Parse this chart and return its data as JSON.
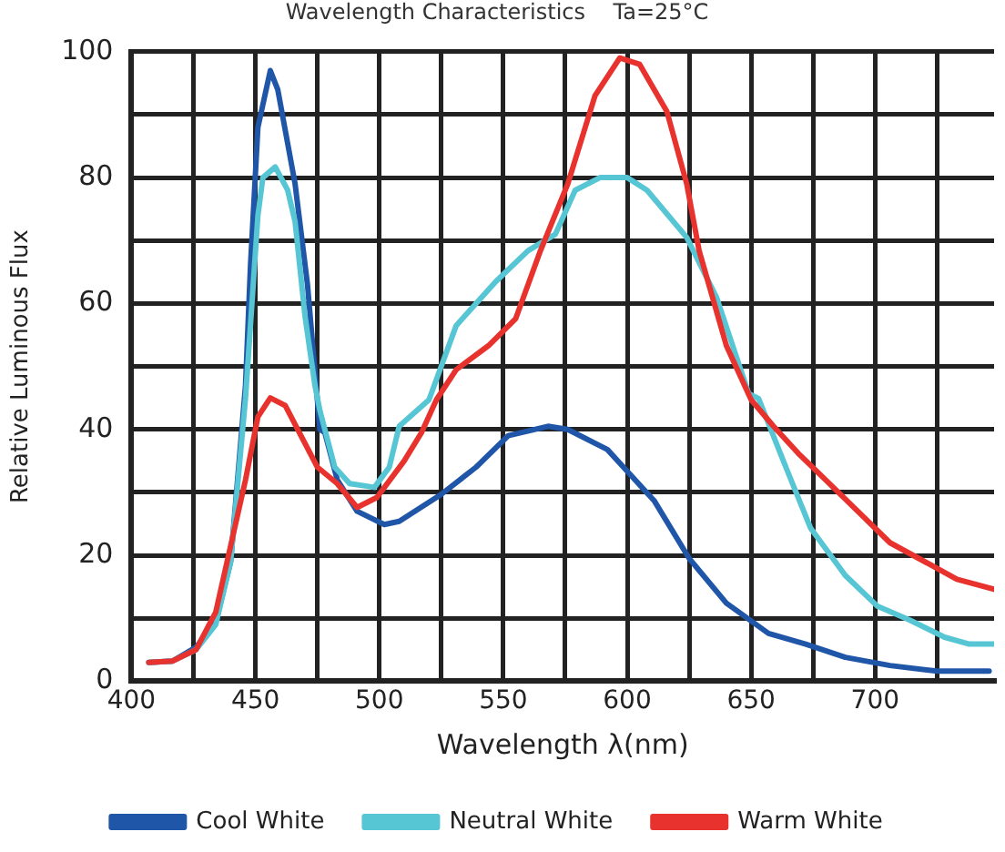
{
  "chart_data": {
    "type": "line",
    "title": "Wavelength Characteristics    Ta=25°C",
    "xlabel": "Wavelength λ(nm)",
    "ylabel": "Relative Luminous Flux",
    "xlim": [
      400,
      748
    ],
    "ylim": [
      0,
      100
    ],
    "xticks": [
      400,
      {
        "value": 425,
        "label": null
      },
      450,
      {
        "value": 475,
        "label": null
      },
      500,
      {
        "value": 525,
        "label": null
      },
      550,
      {
        "value": 575,
        "label": null
      },
      600,
      {
        "value": 625,
        "label": null
      },
      650,
      {
        "value": 675,
        "label": null
      },
      700,
      {
        "value": 725,
        "label": null
      }
    ],
    "yticks": [
      0,
      {
        "value": 10,
        "label": null
      },
      20,
      {
        "value": 30,
        "label": null
      },
      40,
      {
        "value": 50,
        "label": null
      },
      60,
      {
        "value": 70,
        "label": null
      },
      80,
      {
        "value": 90,
        "label": null
      },
      100
    ],
    "grid": true,
    "legend": "bottom",
    "marker": "none",
    "line_style": "solid",
    "series": [
      {
        "name": "Cool White",
        "color": "#1f56a8",
        "x": [
          407,
          416.5,
          426,
          434,
          440,
          446,
          448,
          451,
          456,
          459,
          466,
          471,
          476,
          478,
          483,
          491,
          502,
          508,
          525,
          539,
          552,
          568,
          576,
          592,
          611,
          625,
          640,
          657,
          672,
          688,
          706,
          725,
          746
        ],
        "values": [
          3,
          3.2,
          5.4,
          9.4,
          19,
          47,
          66,
          88,
          97,
          94,
          79,
          63,
          40,
          39.5,
          32,
          27,
          24.9,
          25.4,
          29.7,
          34,
          39,
          40.5,
          40,
          36.8,
          28.6,
          19.5,
          12.4,
          7.6,
          5.9,
          3.8,
          2.5,
          1.6,
          1.6
        ]
      },
      {
        "name": "Neutral White",
        "color": "#56c5d4",
        "x": [
          407,
          416.5,
          426,
          434,
          440,
          446,
          451,
          453,
          458,
          463,
          466,
          470,
          474,
          476,
          482,
          488,
          498,
          504,
          508,
          520,
          531,
          547,
          560,
          571,
          579,
          589,
          600,
          608,
          624,
          636,
          649,
          653,
          664,
          674,
          688,
          701,
          714,
          728,
          738,
          748
        ],
        "values": [
          3,
          3.2,
          5,
          9,
          19,
          45,
          74,
          80,
          81.7,
          78,
          73,
          58,
          47,
          43,
          34,
          31.4,
          30.8,
          34,
          40.5,
          44.7,
          56.5,
          63.5,
          68.4,
          71,
          78,
          80,
          80,
          78,
          70.5,
          61,
          45.7,
          44.9,
          34,
          24.3,
          16.8,
          11.9,
          9.7,
          7,
          5.9,
          5.9
        ]
      },
      {
        "name": "Warm White",
        "color": "#e8322d",
        "x": [
          407,
          416.5,
          426,
          434,
          446,
          451,
          456,
          462,
          475,
          483,
          491,
          499,
          510,
          517,
          523,
          531,
          544,
          555,
          565,
          576,
          587,
          597,
          605,
          616,
          624,
          629,
          640,
          650,
          659,
          669,
          680,
          693,
          706,
          720,
          733,
          748
        ],
        "values": [
          3,
          3.2,
          5,
          11,
          32,
          42,
          45,
          43.8,
          34,
          31.4,
          27.6,
          29.2,
          35,
          39.5,
          44.7,
          49.5,
          53.3,
          57.6,
          68.4,
          79,
          93,
          99,
          98,
          90.5,
          79,
          68.4,
          53.3,
          44.7,
          40.5,
          36.2,
          32,
          27,
          22,
          19,
          16.2,
          14.6
        ]
      }
    ]
  }
}
